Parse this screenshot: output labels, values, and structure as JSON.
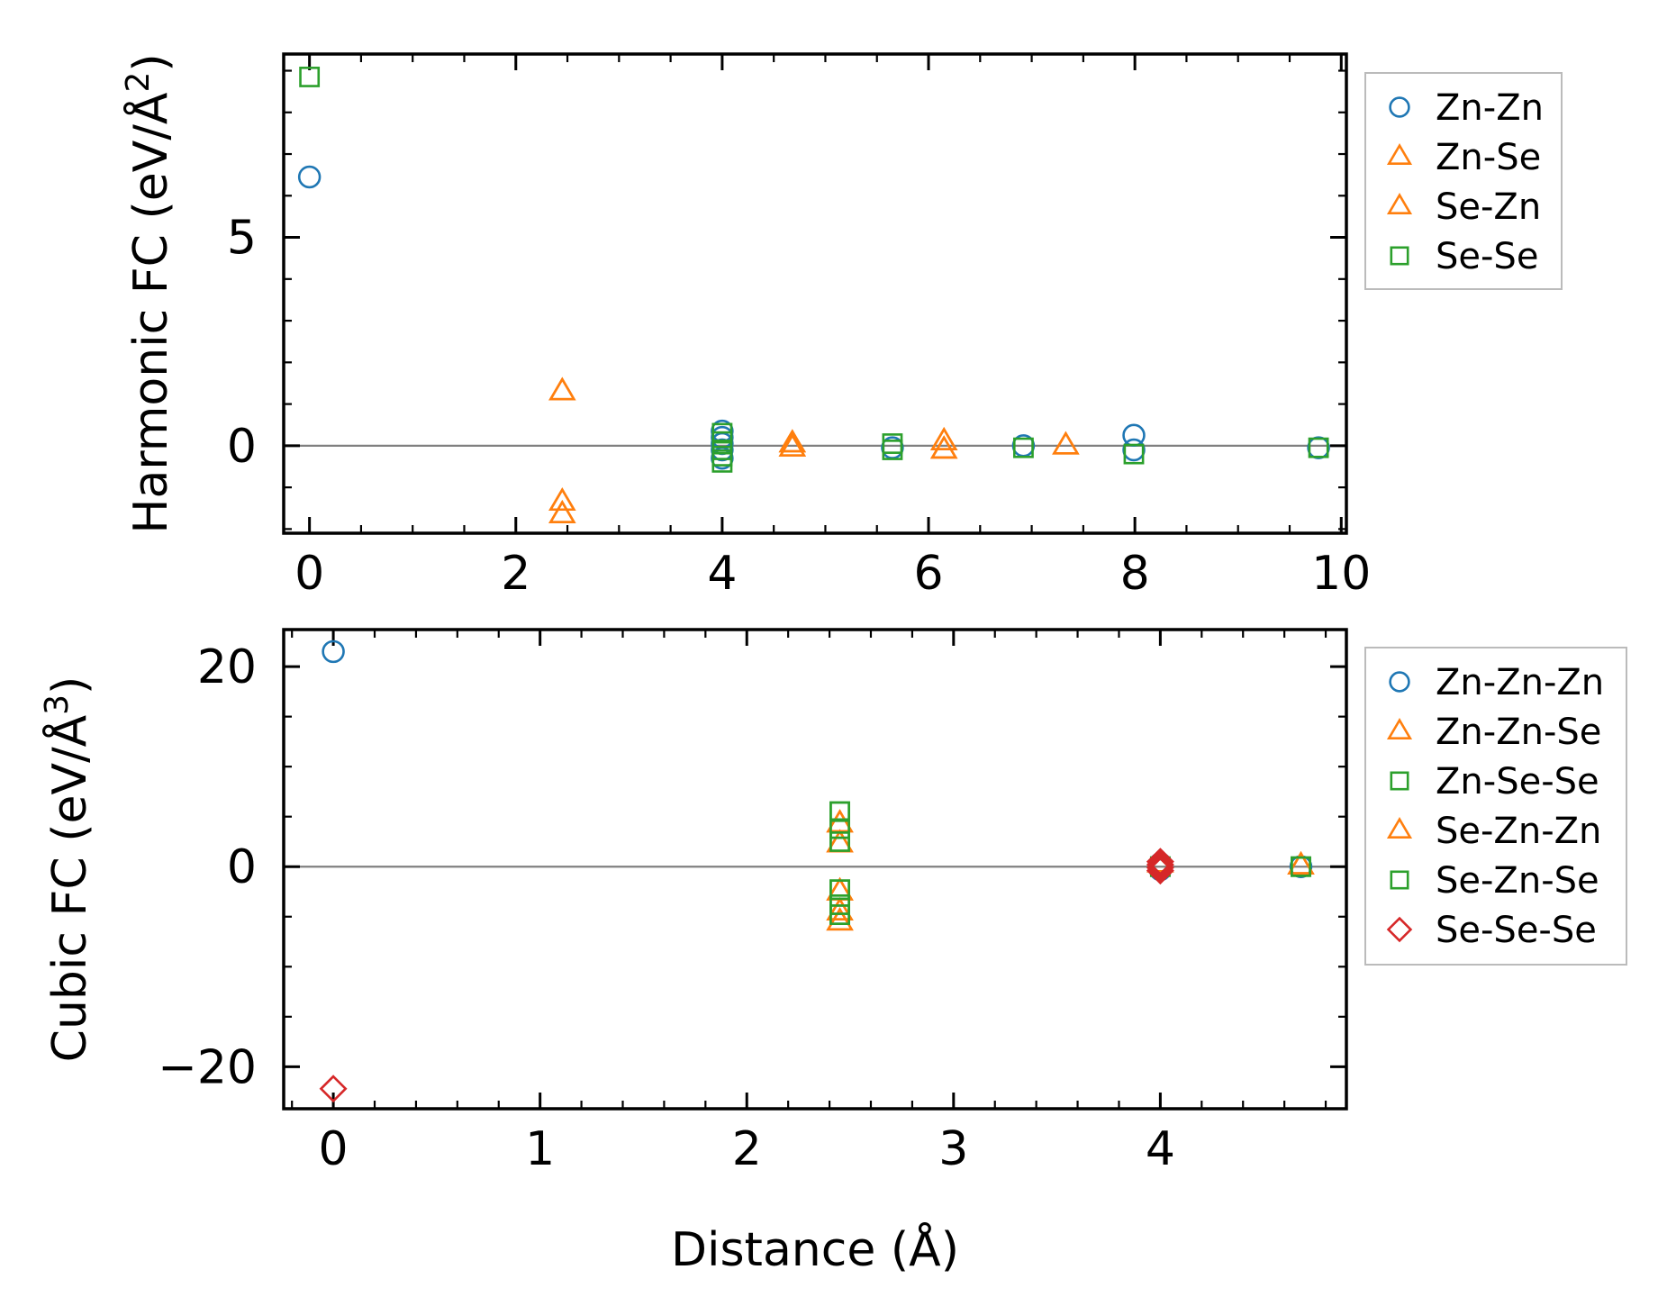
{
  "chart_data": [
    {
      "type": "scatter",
      "ylabel": "Harmonic FC (eV/Å²)",
      "ylabel_main": "Harmonic FC (eV/Å",
      "ylabel_sup": "2",
      "ylabel_close": ")",
      "xlabel": "",
      "xlim": [
        -0.25,
        10.05
      ],
      "ylim": [
        -2.1,
        9.4
      ],
      "xticks": [
        0,
        2,
        4,
        6,
        8,
        10
      ],
      "xtick_labels": [
        "0",
        "2",
        "4",
        "6",
        "8",
        "10"
      ],
      "yticks": [
        0,
        5
      ],
      "ytick_labels": [
        "0",
        "5"
      ],
      "zero_line": true,
      "legend_position": "right",
      "series": [
        {
          "name": "Zn-Zn",
          "marker": "circle",
          "color": "#1f77b4",
          "points": [
            [
              0,
              6.45
            ],
            [
              4.0,
              0.35
            ],
            [
              4.0,
              0.2
            ],
            [
              4.0,
              0.05
            ],
            [
              4.0,
              -0.1
            ],
            [
              4.0,
              -0.3
            ],
            [
              5.65,
              -0.05
            ],
            [
              6.92,
              0.0
            ],
            [
              7.99,
              0.25
            ],
            [
              7.99,
              -0.1
            ],
            [
              9.78,
              -0.05
            ]
          ]
        },
        {
          "name": "Zn-Se",
          "marker": "triangle",
          "color": "#ff7f0e",
          "points": [
            [
              2.45,
              1.3
            ],
            [
              2.45,
              -1.35
            ],
            [
              2.45,
              -1.65
            ],
            [
              4.68,
              0.05
            ],
            [
              4.68,
              -0.05
            ],
            [
              6.15,
              0.1
            ],
            [
              6.15,
              -0.1
            ],
            [
              7.33,
              0.0
            ]
          ]
        },
        {
          "name": "Se-Zn",
          "marker": "triangle",
          "color": "#ff7f0e",
          "points": [
            [
              2.45,
              1.3
            ],
            [
              2.45,
              -1.35
            ],
            [
              2.45,
              -1.65
            ],
            [
              4.68,
              0.05
            ],
            [
              4.68,
              -0.05
            ],
            [
              6.15,
              0.1
            ],
            [
              6.15,
              -0.1
            ],
            [
              7.33,
              0.0
            ]
          ]
        },
        {
          "name": "Se-Se",
          "marker": "square",
          "color": "#2ca02c",
          "points": [
            [
              0,
              8.85
            ],
            [
              4.0,
              0.3
            ],
            [
              4.0,
              0.1
            ],
            [
              4.0,
              -0.1
            ],
            [
              4.0,
              -0.25
            ],
            [
              4.0,
              -0.4
            ],
            [
              5.65,
              0.05
            ],
            [
              5.65,
              -0.1
            ],
            [
              6.92,
              -0.05
            ],
            [
              7.99,
              -0.2
            ],
            [
              9.78,
              -0.05
            ]
          ]
        }
      ]
    },
    {
      "type": "scatter",
      "ylabel": "Cubic FC (eV/Å³)",
      "ylabel_main": "Cubic FC (eV/Å",
      "ylabel_sup": "3",
      "ylabel_close": ")",
      "xlabel": "Distance (Å)",
      "xlim": [
        -0.24,
        4.9
      ],
      "ylim": [
        -24.2,
        23.7
      ],
      "xticks": [
        0,
        1,
        2,
        3,
        4
      ],
      "xtick_labels": [
        "0",
        "1",
        "2",
        "3",
        "4"
      ],
      "yticks": [
        -20,
        0,
        20
      ],
      "ytick_labels": [
        "−20",
        "0",
        "20"
      ],
      "zero_line": true,
      "legend_position": "right",
      "series": [
        {
          "name": "Zn-Zn-Zn",
          "marker": "circle",
          "color": "#1f77b4",
          "points": [
            [
              0,
              21.5
            ],
            [
              4.0,
              0.3
            ],
            [
              4.0,
              -0.3
            ],
            [
              4.68,
              0.0
            ]
          ]
        },
        {
          "name": "Zn-Zn-Se",
          "marker": "triangle",
          "color": "#ff7f0e",
          "points": [
            [
              2.45,
              4.3
            ],
            [
              2.45,
              2.3
            ],
            [
              2.45,
              -2.5
            ],
            [
              2.45,
              -4.5
            ],
            [
              2.45,
              -5.5
            ],
            [
              4.0,
              0.3
            ],
            [
              4.68,
              0.1
            ]
          ]
        },
        {
          "name": "Zn-Se-Se",
          "marker": "square",
          "color": "#2ca02c",
          "points": [
            [
              2.45,
              5.5
            ],
            [
              2.45,
              3.8
            ],
            [
              2.45,
              2.5
            ],
            [
              2.45,
              -2.3
            ],
            [
              2.45,
              -3.8
            ],
            [
              2.45,
              -4.8
            ],
            [
              4.0,
              0.0
            ],
            [
              4.68,
              0.0
            ]
          ]
        },
        {
          "name": "Se-Zn-Zn",
          "marker": "triangle",
          "color": "#ff7f0e",
          "points": [
            [
              2.45,
              4.3
            ],
            [
              2.45,
              2.3
            ],
            [
              2.45,
              -2.5
            ],
            [
              2.45,
              -4.5
            ],
            [
              2.45,
              -5.5
            ],
            [
              4.0,
              0.3
            ],
            [
              4.68,
              0.1
            ]
          ]
        },
        {
          "name": "Se-Zn-Se",
          "marker": "square",
          "color": "#2ca02c",
          "points": [
            [
              2.45,
              5.5
            ],
            [
              2.45,
              3.8
            ],
            [
              2.45,
              2.5
            ],
            [
              2.45,
              -2.3
            ],
            [
              2.45,
              -3.8
            ],
            [
              2.45,
              -4.8
            ],
            [
              4.0,
              0.0
            ],
            [
              4.68,
              0.0
            ]
          ]
        },
        {
          "name": "Se-Se-Se",
          "marker": "diamond",
          "color": "#d62728",
          "points": [
            [
              0,
              -22.2
            ],
            [
              4.0,
              0.5
            ],
            [
              4.0,
              0.2
            ],
            [
              4.0,
              -0.1
            ],
            [
              4.0,
              -0.4
            ]
          ]
        }
      ]
    }
  ]
}
